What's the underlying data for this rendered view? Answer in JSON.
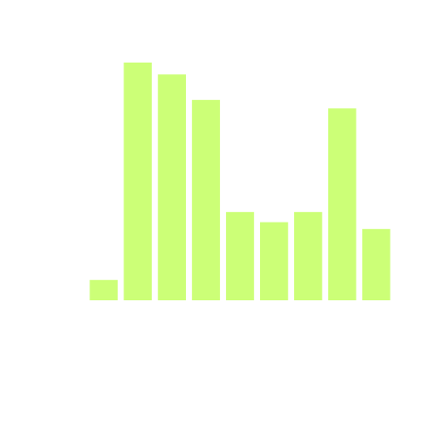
{
  "chart_data": {
    "type": "bar",
    "categories": [
      "",
      "",
      "",
      "",
      "",
      "",
      "",
      "",
      ""
    ],
    "values": [
      6,
      70,
      66.5,
      59,
      26,
      23,
      26,
      56.5,
      21
    ],
    "ylim": [
      0,
      75
    ],
    "grid": false,
    "legend": "none",
    "colors": {
      "bar": "#ccff77",
      "background": "#ffffff"
    }
  }
}
